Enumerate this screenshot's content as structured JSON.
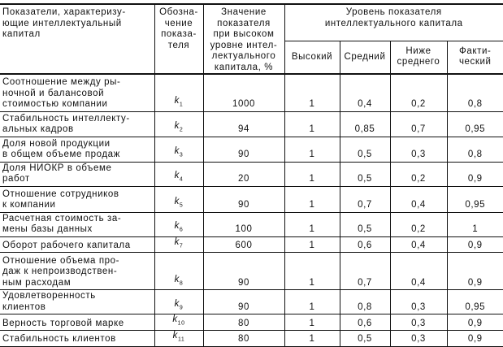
{
  "header": {
    "indicator": "Показатели, характеризу-\nющие интеллектуальный\nкапитал",
    "symbol": "Обозна-\nчение\nпоказа-\nтеля",
    "high_value": "Значение\nпоказателя\nпри высоком\nуровне интел-\nлектуального\nкапитала, %",
    "level_group": "Уровень показателя\nинтеллектуального капитала",
    "levels": [
      "Высокий",
      "Средний",
      "Ниже\nсреднего",
      "Факти-\nческий"
    ]
  },
  "rows": [
    {
      "name": "Соотношение между ры-\nночной и балансовой\nстоимостью компании",
      "sym": "k",
      "idx": "1",
      "value": "1000",
      "high": "1",
      "mid": "0,4",
      "low": "0,2",
      "actual": "0,8"
    },
    {
      "name": "Стабильность интеллекту-\nальных кадров",
      "sym": "k",
      "idx": "2",
      "value": "94",
      "high": "1",
      "mid": "0,85",
      "low": "0,7",
      "actual": "0,95"
    },
    {
      "name": "Доля новой продукции\nв общем объеме продаж",
      "sym": "k",
      "idx": "3",
      "value": "90",
      "high": "1",
      "mid": "0,5",
      "low": "0,3",
      "actual": "0,8"
    },
    {
      "name": "Доля НИОКР в объеме\nработ",
      "sym": "k",
      "idx": "4",
      "value": "20",
      "high": "1",
      "mid": "0,5",
      "low": "0,2",
      "actual": "0,9"
    },
    {
      "name": "Отношение сотрудников\nк компании",
      "sym": "k",
      "idx": "5",
      "value": "90",
      "high": "1",
      "mid": "0,7",
      "low": "0,4",
      "actual": "0,95"
    },
    {
      "name": "Расчетная стоимость за-\nмены базы данных",
      "sym": "k",
      "idx": "6",
      "value": "100",
      "high": "1",
      "mid": "0,5",
      "low": "0,2",
      "actual": "1"
    },
    {
      "name": "Оборот рабочего капитала",
      "sym": "k",
      "idx": "7",
      "value": "600",
      "high": "1",
      "mid": "0,6",
      "low": "0,4",
      "actual": "0,9"
    },
    {
      "name": "Отношение объема про-\nдаж к непроизводствен-\nным расходам",
      "sym": "k",
      "idx": "8",
      "value": "90",
      "high": "1",
      "mid": "0,7",
      "low": "0,4",
      "actual": "0,9"
    },
    {
      "name": "Удовлетворенность\nклиентов",
      "sym": "k",
      "idx": "9",
      "value": "90",
      "high": "1",
      "mid": "0,8",
      "low": "0,3",
      "actual": "0,95"
    },
    {
      "name": "Верность торговой марке",
      "sym": "k",
      "idx": "10",
      "value": "80",
      "high": "1",
      "mid": "0,6",
      "low": "0,3",
      "actual": "0,9"
    },
    {
      "name": "Стабильность клиентов",
      "sym": "k",
      "idx": "11",
      "value": "80",
      "high": "1",
      "mid": "0,5",
      "low": "0,3",
      "actual": "0,9"
    }
  ]
}
